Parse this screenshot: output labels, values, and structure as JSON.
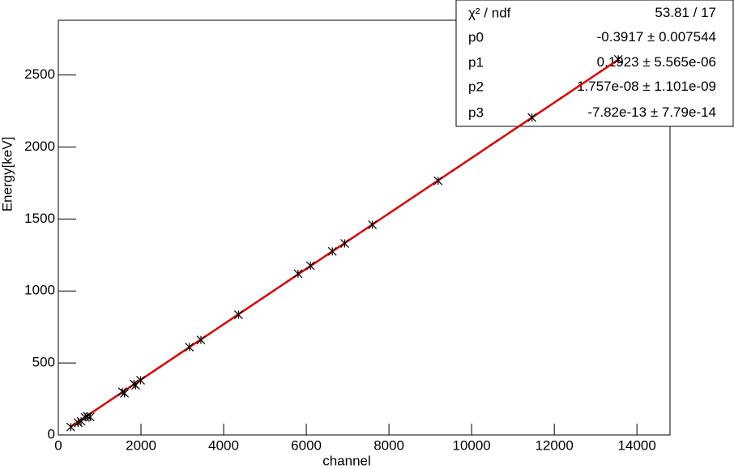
{
  "chart_data": {
    "type": "scatter",
    "x_label": "channel",
    "y_label": "Energy[keV]",
    "xlim": [
      0,
      14800
    ],
    "ylim": [
      0,
      2880
    ],
    "xticks": [
      0,
      2000,
      4000,
      6000,
      8000,
      10000,
      12000,
      14000
    ],
    "yticks": [
      0,
      500,
      1000,
      1500,
      2000,
      2500
    ],
    "series": [
      {
        "color": "#000000",
        "x": [
          300,
          480,
          550,
          650,
          700,
          770,
          1550,
          1600,
          1830,
          1870,
          1990,
          3170,
          3450,
          4360,
          5800,
          6100,
          6630,
          6930,
          7600,
          9190,
          11460,
          13550
        ],
        "values": [
          55,
          85,
          95,
          122,
          130,
          125,
          300,
          290,
          355,
          345,
          380,
          610,
          660,
          835,
          1120,
          1175,
          1275,
          1330,
          1460,
          1765,
          2204,
          2608
        ]
      }
    ],
    "fit": {
      "color": "#e00000",
      "chi2_label": "χ² / ndf",
      "chi2": 53.81,
      "ndf": 17,
      "params": [
        {
          "name": "p0",
          "value": -0.3917,
          "error": 0.007544
        },
        {
          "name": "p1",
          "value": 0.1923,
          "error": {
            "value": 5.565e-06,
            "label": "5.565e-06"
          }
        },
        {
          "name": "p2",
          "value": {
            "value": 1.757e-08,
            "label": "1.757e-08"
          },
          "error": {
            "value": 1.101e-09,
            "label": "1.101e-09"
          }
        },
        {
          "name": "p3",
          "value": {
            "value": -7.82e-13,
            "label": "-7.82e-13"
          },
          "error": {
            "value": 7.79e-14,
            "label": "7.79e-14"
          }
        }
      ]
    }
  }
}
